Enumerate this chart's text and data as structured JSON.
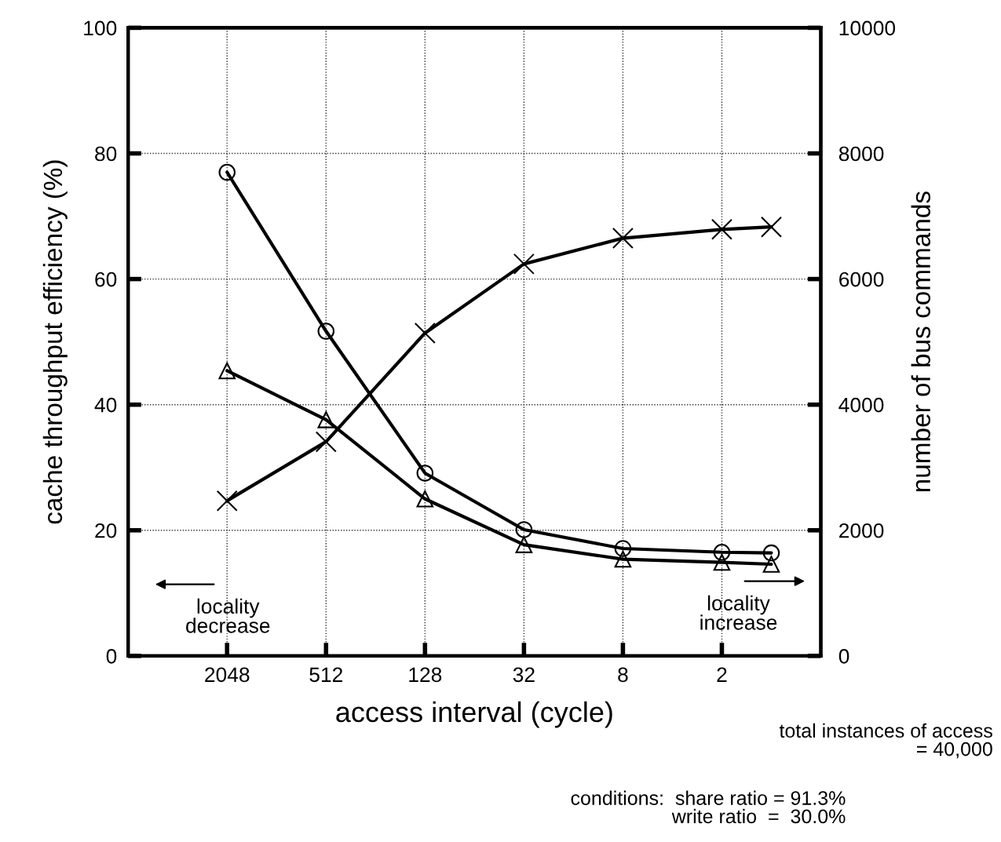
{
  "chart_data": {
    "type": "line",
    "xlabel": "access interval (cycle)",
    "ylabel": "cache throughput efficiency (%)",
    "y2label": "number of bus commands",
    "x": [
      2048,
      512,
      128,
      32,
      8,
      2,
      1
    ],
    "log": "x",
    "xlim": [
      8192,
      0.5
    ],
    "xticks": [
      2048,
      512,
      128,
      32,
      8,
      2
    ],
    "ylim": [
      0,
      100
    ],
    "yticks": [
      0,
      20,
      40,
      60,
      80,
      100
    ],
    "y2lim": [
      0,
      10000
    ],
    "y2ticks": [
      0,
      2000,
      4000,
      6000,
      8000,
      10000
    ],
    "grid": true,
    "line_style": "solid",
    "series": [
      {
        "color": "#000000",
        "marker": "circle",
        "values": [
          77,
          51.7,
          29.1,
          20.1,
          17.1,
          16.5,
          16.4
        ]
      },
      {
        "color": "#000000",
        "marker": "triangle",
        "values": [
          45.4,
          37.6,
          25,
          17.7,
          15.4,
          14.9,
          14.6
        ]
      },
      {
        "color": "#000000",
        "marker": "cross",
        "axis": "y2",
        "values": [
          2470,
          3410,
          5140,
          6240,
          6650,
          6790,
          6830
        ]
      }
    ],
    "annotations": [
      "locality\ndecrease",
      "locality\nincrease",
      "total instances of access\n= 40,000",
      "conditions:  share ratio = 91.3%\nwrite ratio  =  30.0%"
    ]
  }
}
